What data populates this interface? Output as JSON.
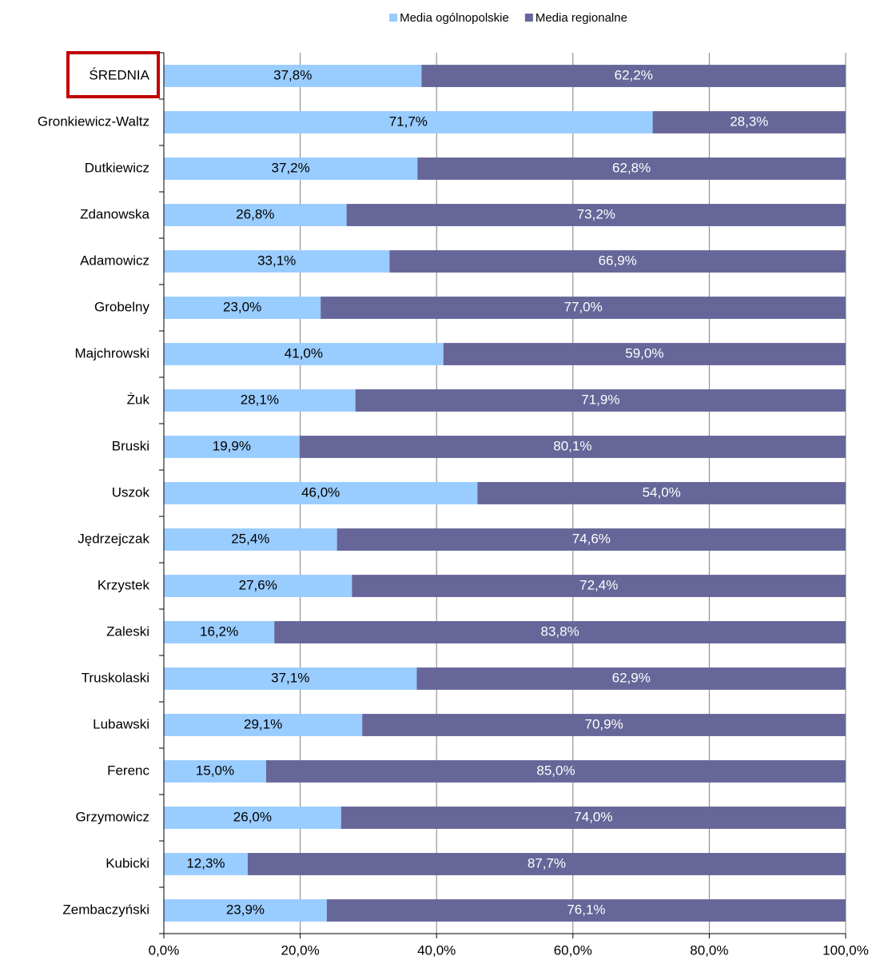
{
  "chart_data": {
    "type": "stacked_barh",
    "categories": [
      "ŚREDNIA",
      "Gronkiewicz-Waltz",
      "Dutkiewicz",
      "Zdanowska",
      "Adamowicz",
      "Grobelny",
      "Majchrowski",
      "Żuk",
      "Bruski",
      "Uszok",
      "Jędrzejczak",
      "Krzystek",
      "Zaleski",
      "Truskolaski",
      "Lubawski",
      "Ferenc",
      "Grzymowicz",
      "Kubicki",
      "Zembaczyński"
    ],
    "series": [
      {
        "name": "Media ogólnopolskie",
        "color": "#99ccff",
        "label_color": "#000000",
        "values": [
          37.8,
          71.7,
          37.2,
          26.8,
          33.1,
          23.0,
          41.0,
          28.1,
          19.9,
          46.0,
          25.4,
          27.6,
          16.2,
          37.1,
          29.1,
          15.0,
          26.0,
          12.3,
          23.9
        ],
        "value_labels": [
          "37,8%",
          "71,7%",
          "37,2%",
          "26,8%",
          "33,1%",
          "23,0%",
          "41,0%",
          "28,1%",
          "19,9%",
          "46,0%",
          "25,4%",
          "27,6%",
          "16,2%",
          "37,1%",
          "29,1%",
          "15,0%",
          "26,0%",
          "12,3%",
          "23,9%"
        ]
      },
      {
        "name": "Media regionalne",
        "color": "#666699",
        "label_color": "#ffffff",
        "values": [
          62.2,
          28.3,
          62.8,
          73.2,
          66.9,
          77.0,
          59.0,
          71.9,
          80.1,
          54.0,
          74.6,
          72.4,
          83.8,
          62.9,
          70.9,
          85.0,
          74.0,
          87.7,
          76.1
        ],
        "value_labels": [
          "62,2%",
          "28,3%",
          "62,8%",
          "73,2%",
          "66,9%",
          "77,0%",
          "59,0%",
          "71,9%",
          "80,1%",
          "54,0%",
          "74,6%",
          "72,4%",
          "83,8%",
          "62,9%",
          "70,9%",
          "85,0%",
          "74,0%",
          "87,7%",
          "76,1%"
        ]
      }
    ],
    "xlim": [
      0,
      100
    ],
    "xticks": [
      {
        "value": 0,
        "label": "0,0%"
      },
      {
        "value": 20,
        "label": "20,0%"
      },
      {
        "value": 40,
        "label": "40,0%"
      },
      {
        "value": 60,
        "label": "60,0%"
      },
      {
        "value": 80,
        "label": "80,0%"
      },
      {
        "value": 100,
        "label": "100,0%"
      }
    ],
    "grid": true,
    "legend": "top"
  }
}
